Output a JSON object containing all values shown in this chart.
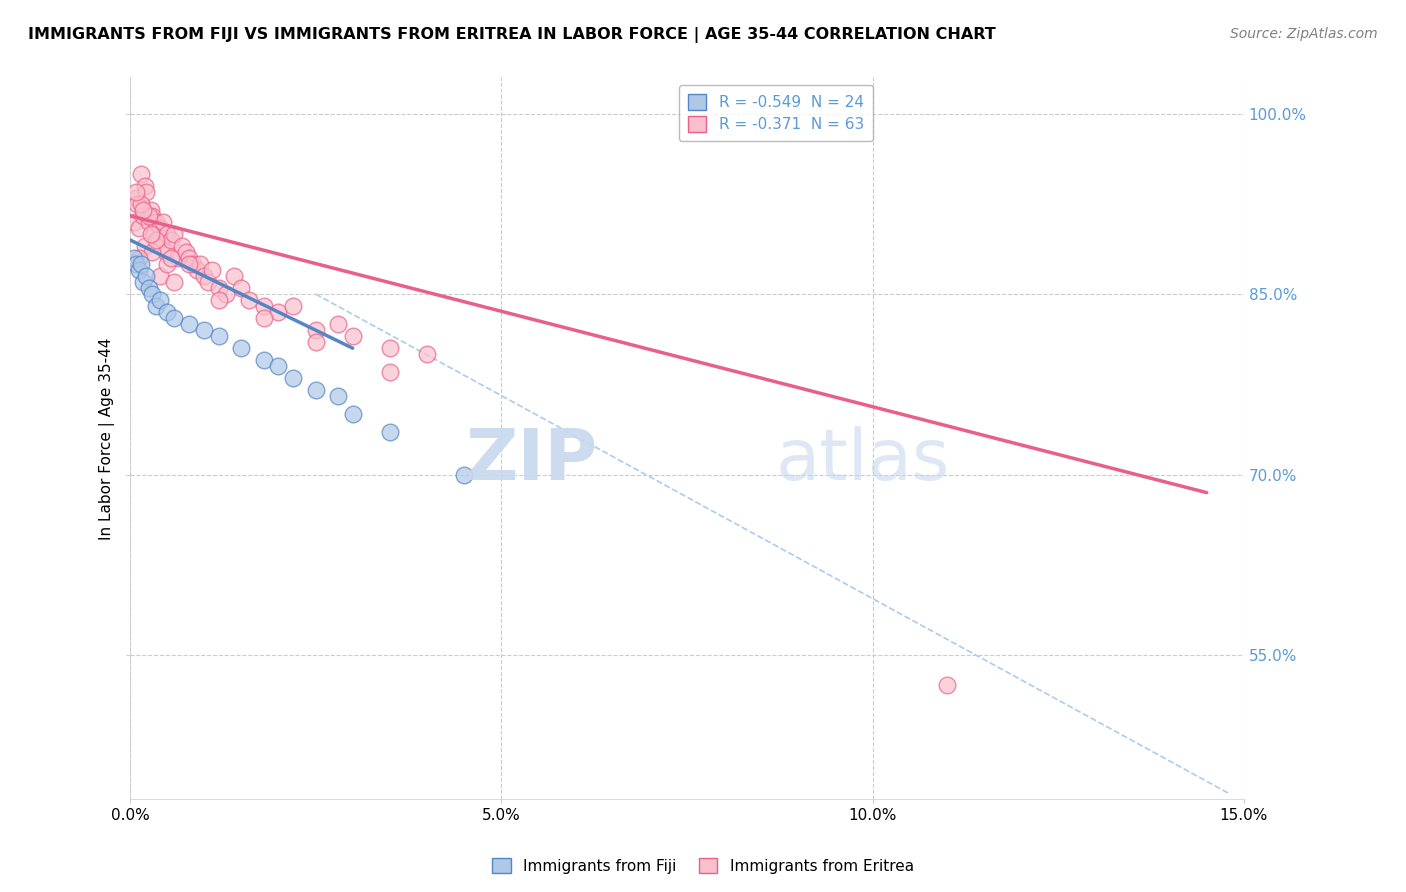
{
  "title": "IMMIGRANTS FROM FIJI VS IMMIGRANTS FROM ERITREA IN LABOR FORCE | AGE 35-44 CORRELATION CHART",
  "source_text": "Source: ZipAtlas.com",
  "ylabel": "In Labor Force | Age 35-44",
  "xlim": [
    0.0,
    15.0
  ],
  "ylim": [
    43.0,
    103.0
  ],
  "x_ticks": [
    0.0,
    5.0,
    10.0,
    15.0
  ],
  "x_tick_labels": [
    "0.0%",
    "5.0%",
    "10.0%",
    "15.0%"
  ],
  "y_ticks": [
    55.0,
    70.0,
    85.0,
    100.0
  ],
  "y_tick_labels": [
    "55.0%",
    "70.0%",
    "85.0%",
    "100.0%"
  ],
  "fiji_color": "#aec8e8",
  "eritrea_color": "#f9c0cc",
  "fiji_edge_color": "#5585c5",
  "eritrea_edge_color": "#e8608a",
  "fiji_label": "Immigrants from Fiji",
  "eritrea_label": "Immigrants from Eritrea",
  "fiji_R": "-0.549",
  "fiji_N": "24",
  "eritrea_R": "-0.371",
  "eritrea_N": "63",
  "watermark_zip": "ZIP",
  "watermark_atlas": "atlas",
  "background_color": "#ffffff",
  "grid_color": "#cccccc",
  "fiji_trend_x": [
    0.0,
    3.0
  ],
  "fiji_trend_y": [
    89.5,
    80.5
  ],
  "eritrea_trend_x": [
    0.0,
    14.5
  ],
  "eritrea_trend_y": [
    91.5,
    68.5
  ],
  "dashed_line_x": [
    2.5,
    14.8
  ],
  "dashed_line_y": [
    85.0,
    43.5
  ],
  "fiji_points_x": [
    0.05,
    0.08,
    0.12,
    0.15,
    0.18,
    0.22,
    0.25,
    0.3,
    0.35,
    0.4,
    0.5,
    0.6,
    0.8,
    1.0,
    1.2,
    1.5,
    1.8,
    2.0,
    2.2,
    2.5,
    2.8,
    3.0,
    3.5,
    4.5
  ],
  "fiji_points_y": [
    88.0,
    87.5,
    87.0,
    87.5,
    86.0,
    86.5,
    85.5,
    85.0,
    84.0,
    84.5,
    83.5,
    83.0,
    82.5,
    82.0,
    81.5,
    80.5,
    79.5,
    79.0,
    78.0,
    77.0,
    76.5,
    75.0,
    73.5,
    70.0
  ],
  "eritrea_points_x": [
    0.05,
    0.08,
    0.1,
    0.12,
    0.15,
    0.18,
    0.2,
    0.22,
    0.25,
    0.28,
    0.3,
    0.32,
    0.35,
    0.38,
    0.4,
    0.42,
    0.45,
    0.48,
    0.5,
    0.55,
    0.6,
    0.65,
    0.7,
    0.75,
    0.8,
    0.85,
    0.9,
    0.95,
    1.0,
    1.05,
    1.1,
    1.2,
    1.3,
    1.4,
    1.5,
    1.6,
    1.8,
    2.0,
    2.2,
    2.5,
    2.8,
    3.0,
    3.5,
    4.0,
    0.2,
    0.3,
    0.4,
    0.5,
    0.6,
    0.25,
    0.35,
    0.15,
    0.55,
    2.5,
    3.5,
    0.8,
    1.2,
    1.8,
    11.0,
    0.12,
    0.08,
    0.18,
    0.28
  ],
  "eritrea_points_y": [
    91.0,
    93.0,
    92.5,
    90.5,
    95.0,
    91.5,
    94.0,
    93.5,
    91.0,
    92.0,
    91.5,
    90.0,
    91.0,
    89.5,
    90.5,
    89.0,
    91.0,
    88.5,
    90.0,
    89.5,
    90.0,
    88.0,
    89.0,
    88.5,
    88.0,
    87.5,
    87.0,
    87.5,
    86.5,
    86.0,
    87.0,
    85.5,
    85.0,
    86.5,
    85.5,
    84.5,
    84.0,
    83.5,
    84.0,
    82.0,
    82.5,
    81.5,
    80.5,
    80.0,
    89.0,
    88.5,
    86.5,
    87.5,
    86.0,
    91.5,
    89.5,
    92.5,
    88.0,
    81.0,
    78.5,
    87.5,
    84.5,
    83.0,
    52.5,
    88.0,
    93.5,
    92.0,
    90.0
  ],
  "title_fontsize": 11.5,
  "axis_label_fontsize": 11,
  "tick_fontsize": 11,
  "legend_fontsize": 11,
  "source_fontsize": 10,
  "marker_size": 12
}
